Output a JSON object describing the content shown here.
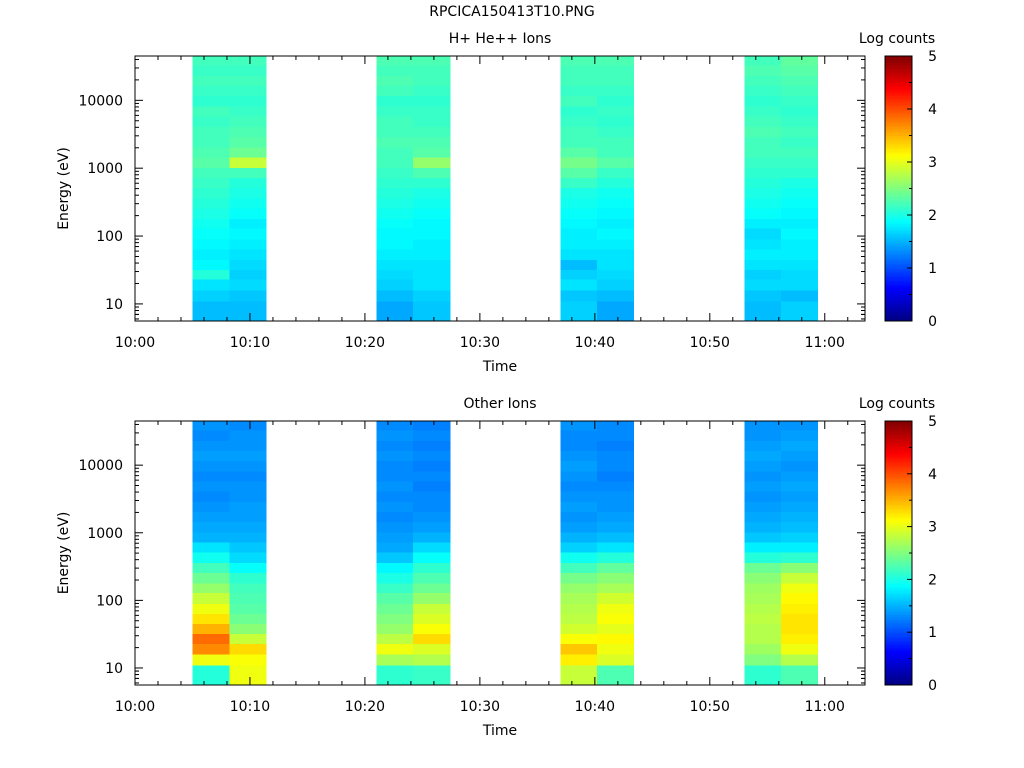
{
  "page_title": "RPCICA150413T10.PNG",
  "chart_data": [
    {
      "type": "heatmap",
      "title": "H+ He++ Ions",
      "xlabel": "Time",
      "ylabel": "Energy (eV)",
      "x_ticks": [
        "10:00",
        "10:10",
        "10:20",
        "10:30",
        "10:40",
        "10:50",
        "11:00"
      ],
      "x_range_minutes": [
        0,
        63.5
      ],
      "y_scale": "log",
      "y_range": [
        5.6,
        45000
      ],
      "y_ticks": [
        10,
        100,
        1000,
        10000
      ],
      "y_tick_labels": [
        "10",
        "100",
        "1000",
        "10000"
      ],
      "colorbar": {
        "label": "Log counts",
        "range": [
          0,
          5
        ],
        "tick_labels": [
          "0",
          "1",
          "2",
          "3",
          "4",
          "5"
        ]
      },
      "energy_bin_edges": [
        5.6,
        11,
        16,
        23,
        32,
        45,
        64,
        90,
        130,
        180,
        256,
        362,
        512,
        724,
        1024,
        1450,
        2048,
        2900,
        4100,
        5800,
        8200,
        11600,
        16400,
        23200,
        32800,
        45000
      ],
      "columns": [
        {
          "start_min": 5,
          "end_min": 8.2,
          "log_counts": [
            1.55,
            1.65,
            1.75,
            2.05,
            1.85,
            1.8,
            1.85,
            1.9,
            1.95,
            2.0,
            2.05,
            2.1,
            2.15,
            2.2,
            2.3,
            2.25,
            2.2,
            2.2,
            2.15,
            2.2,
            2.1,
            2.15,
            2.2,
            2.15,
            2.2
          ]
        },
        {
          "start_min": 8.2,
          "end_min": 11.4,
          "log_counts": [
            1.55,
            1.6,
            1.7,
            1.65,
            1.7,
            1.75,
            1.8,
            1.85,
            1.8,
            1.9,
            1.95,
            2.0,
            2.05,
            2.2,
            2.85,
            2.4,
            2.3,
            2.25,
            2.2,
            2.15,
            2.1,
            2.15,
            2.2,
            2.15,
            2.2
          ]
        },
        {
          "start_min": 21,
          "end_min": 24.2,
          "log_counts": [
            1.45,
            1.55,
            1.65,
            1.7,
            1.75,
            1.8,
            1.85,
            1.85,
            1.9,
            1.95,
            2.0,
            2.05,
            2.1,
            2.15,
            2.2,
            2.2,
            2.25,
            2.2,
            2.2,
            2.15,
            2.1,
            2.2,
            2.25,
            2.2,
            2.25
          ]
        },
        {
          "start_min": 24.2,
          "end_min": 27.4,
          "log_counts": [
            1.6,
            1.65,
            1.75,
            1.75,
            1.75,
            1.8,
            1.8,
            1.85,
            1.85,
            1.9,
            1.95,
            2.0,
            2.1,
            2.25,
            2.6,
            2.3,
            2.25,
            2.2,
            2.15,
            2.15,
            2.1,
            2.15,
            2.2,
            2.2,
            2.25
          ]
        },
        {
          "start_min": 37,
          "end_min": 40.2,
          "log_counts": [
            1.65,
            1.6,
            1.75,
            1.65,
            1.55,
            1.75,
            1.8,
            1.8,
            1.85,
            1.9,
            1.95,
            2.0,
            2.15,
            2.3,
            2.45,
            2.3,
            2.2,
            2.2,
            2.15,
            2.1,
            2.2,
            2.15,
            2.2,
            2.2,
            2.25
          ]
        },
        {
          "start_min": 40.2,
          "end_min": 43.4,
          "log_counts": [
            1.45,
            1.55,
            1.65,
            1.7,
            1.75,
            1.75,
            1.8,
            1.85,
            1.8,
            1.85,
            1.9,
            1.95,
            2.05,
            2.15,
            2.3,
            2.2,
            2.2,
            2.15,
            2.1,
            2.15,
            2.1,
            2.15,
            2.2,
            2.2,
            2.25
          ]
        },
        {
          "start_min": 53,
          "end_min": 56.2,
          "log_counts": [
            1.55,
            1.6,
            1.7,
            1.65,
            1.75,
            1.8,
            1.75,
            1.7,
            1.8,
            1.9,
            1.95,
            2.0,
            2.05,
            2.1,
            2.15,
            2.2,
            2.2,
            2.25,
            2.2,
            2.15,
            2.1,
            2.15,
            2.2,
            2.25,
            2.2
          ]
        },
        {
          "start_min": 56.2,
          "end_min": 59.4,
          "log_counts": [
            1.65,
            1.55,
            1.7,
            1.7,
            1.75,
            1.8,
            1.8,
            1.85,
            1.8,
            1.85,
            1.9,
            1.95,
            2.0,
            2.1,
            2.15,
            2.2,
            2.15,
            2.2,
            2.15,
            2.1,
            2.15,
            2.2,
            2.25,
            2.3,
            2.35
          ]
        }
      ]
    },
    {
      "type": "heatmap",
      "title": "Other Ions",
      "xlabel": "Time",
      "ylabel": "Energy (eV)",
      "x_ticks": [
        "10:00",
        "10:10",
        "10:20",
        "10:30",
        "10:40",
        "10:50",
        "11:00"
      ],
      "x_range_minutes": [
        0,
        63.5
      ],
      "y_scale": "log",
      "y_range": [
        5.6,
        45000
      ],
      "y_ticks": [
        10,
        100,
        1000,
        10000
      ],
      "y_tick_labels": [
        "10",
        "100",
        "1000",
        "10000"
      ],
      "colorbar": {
        "label": "Log counts",
        "range": [
          0,
          5
        ],
        "tick_labels": [
          "0",
          "1",
          "2",
          "3",
          "4",
          "5"
        ]
      },
      "energy_bin_edges": [
        5.6,
        11,
        16,
        23,
        32,
        45,
        64,
        90,
        130,
        180,
        256,
        362,
        512,
        724,
        1024,
        1450,
        2048,
        2900,
        4100,
        5800,
        8200,
        11600,
        16400,
        23200,
        32800,
        45000
      ],
      "columns": [
        {
          "start_min": 5,
          "end_min": 8.2,
          "log_counts": [
            2.05,
            3.05,
            3.7,
            3.85,
            3.5,
            3.25,
            3.05,
            2.85,
            2.6,
            2.4,
            2.2,
            1.95,
            1.75,
            1.5,
            1.45,
            1.4,
            1.35,
            1.3,
            1.35,
            1.3,
            1.35,
            1.4,
            1.35,
            1.3,
            1.35
          ]
        },
        {
          "start_min": 8.2,
          "end_min": 11.4,
          "log_counts": [
            3.05,
            3.1,
            3.3,
            2.85,
            2.55,
            2.4,
            2.3,
            2.25,
            2.2,
            2.1,
            1.9,
            1.7,
            1.6,
            1.5,
            1.45,
            1.4,
            1.4,
            1.35,
            1.35,
            1.3,
            1.35,
            1.4,
            1.35,
            1.35,
            1.3
          ]
        },
        {
          "start_min": 21,
          "end_min": 24.2,
          "log_counts": [
            2.1,
            2.7,
            3.05,
            2.8,
            2.6,
            2.5,
            2.4,
            2.3,
            2.15,
            2.0,
            1.85,
            1.6,
            1.45,
            1.4,
            1.35,
            1.3,
            1.35,
            1.3,
            1.35,
            1.3,
            1.3,
            1.35,
            1.3,
            1.35,
            1.3
          ]
        },
        {
          "start_min": 24.2,
          "end_min": 27.4,
          "log_counts": [
            2.15,
            2.75,
            2.95,
            3.3,
            3.1,
            2.95,
            2.85,
            2.6,
            2.4,
            2.25,
            2.1,
            1.9,
            1.7,
            1.5,
            1.4,
            1.35,
            1.3,
            1.3,
            1.25,
            1.3,
            1.25,
            1.3,
            1.25,
            1.3,
            1.25
          ]
        },
        {
          "start_min": 37,
          "end_min": 40.2,
          "log_counts": [
            2.85,
            3.2,
            3.4,
            3.1,
            2.9,
            2.8,
            2.75,
            2.7,
            2.6,
            2.45,
            2.2,
            1.95,
            1.65,
            1.5,
            1.4,
            1.35,
            1.4,
            1.35,
            1.3,
            1.35,
            1.4,
            1.35,
            1.3,
            1.3,
            1.35
          ]
        },
        {
          "start_min": 40.2,
          "end_min": 43.4,
          "log_counts": [
            2.25,
            2.95,
            3.05,
            3.15,
            3.0,
            3.1,
            3.05,
            2.9,
            2.7,
            2.55,
            2.35,
            2.05,
            1.75,
            1.55,
            1.45,
            1.4,
            1.35,
            1.35,
            1.3,
            1.25,
            1.3,
            1.3,
            1.25,
            1.3,
            1.3
          ]
        },
        {
          "start_min": 53,
          "end_min": 56.2,
          "log_counts": [
            2.1,
            2.5,
            2.65,
            2.75,
            2.75,
            2.8,
            2.75,
            2.7,
            2.65,
            2.55,
            2.4,
            2.05,
            1.8,
            1.6,
            1.5,
            1.45,
            1.4,
            1.35,
            1.4,
            1.35,
            1.4,
            1.45,
            1.4,
            1.35,
            1.35
          ]
        },
        {
          "start_min": 56.2,
          "end_min": 59.4,
          "log_counts": [
            2.25,
            2.75,
            3.05,
            3.2,
            3.25,
            3.25,
            3.2,
            3.15,
            3.05,
            2.85,
            2.55,
            2.1,
            1.8,
            1.65,
            1.55,
            1.5,
            1.45,
            1.4,
            1.45,
            1.4,
            1.35,
            1.4,
            1.45,
            1.4,
            1.35
          ]
        }
      ]
    }
  ]
}
